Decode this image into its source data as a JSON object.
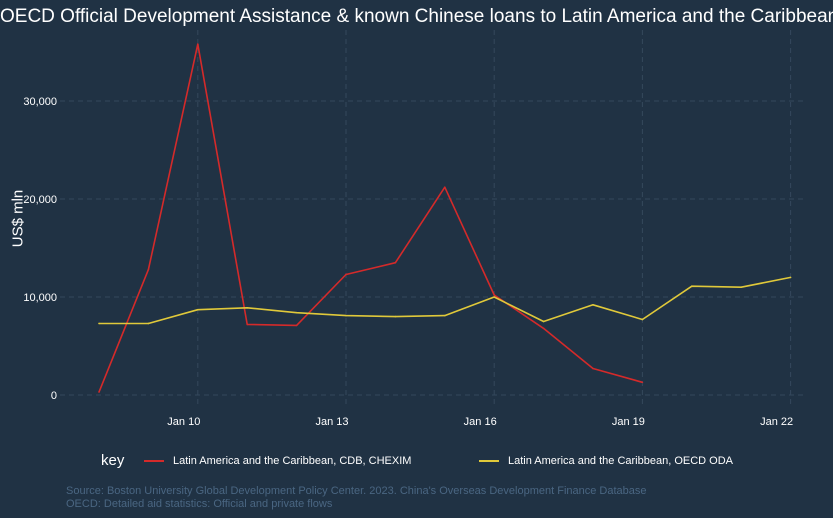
{
  "chart_data": {
    "type": "line",
    "title": "OECD Official Development Assistance & known Chinese loans to Latin America and the Caribbean",
    "ylabel": "US$ mln",
    "xlabel": "",
    "x": [
      "2008",
      "2009",
      "2010",
      "2011",
      "2012",
      "2013",
      "2014",
      "2015",
      "2016",
      "2017",
      "2018",
      "2019",
      "2020",
      "2021",
      "2022"
    ],
    "x_ticks": [
      "Jan 10",
      "Jan 13",
      "Jan 16",
      "Jan 19",
      "Jan 22"
    ],
    "y_ticks": [
      "0",
      "10,000",
      "20,000",
      "30,000"
    ],
    "ylim": [
      -800,
      37000
    ],
    "grid": true,
    "legend_title": "key",
    "legend_position": "bottom",
    "series": [
      {
        "name": "Latin America and the Caribbean, CDB, CHEXIM",
        "color": "#d42a2a",
        "values": [
          300,
          12800,
          35800,
          7200,
          7100,
          12300,
          13500,
          21200,
          10200,
          6800,
          2700,
          1300,
          null,
          null,
          null
        ]
      },
      {
        "name": "Latin America and the Caribbean, OECD ODA",
        "color": "#e0c93a",
        "values": [
          7300,
          7300,
          8700,
          8900,
          8400,
          8100,
          8000,
          8100,
          10000,
          7500,
          9200,
          7700,
          11100,
          11000,
          12000
        ]
      }
    ]
  },
  "caption": {
    "line1": "Source: Boston University Global Development Policy Center. 2023. China's Overseas Development Finance Database",
    "line2": "OECD: Detailed aid statistics: Official and private flows"
  }
}
